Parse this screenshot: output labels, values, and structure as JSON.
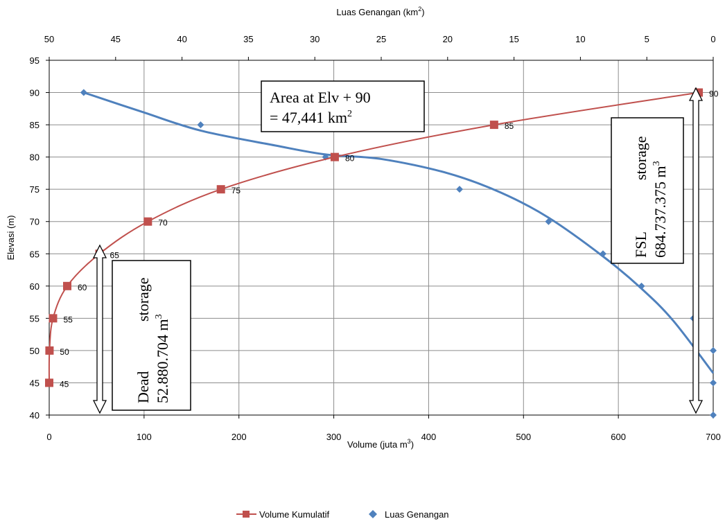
{
  "chart_data": {
    "type": "scatter",
    "x_axis_bottom": {
      "label": "Volume (juta m",
      "label_sup": "3",
      "label_end": ")",
      "range": [
        0,
        700
      ],
      "ticks": [
        0,
        100,
        200,
        300,
        400,
        500,
        600,
        700
      ]
    },
    "x_axis_top": {
      "label": "Luas  Genangan (km",
      "label_sup": "2",
      "label_end": ")",
      "range": [
        50,
        0
      ],
      "reversed": true,
      "ticks": [
        50,
        45,
        40,
        35,
        30,
        25,
        20,
        15,
        10,
        5,
        0
      ]
    },
    "y_axis": {
      "label": "Elevasi (m)",
      "range": [
        40,
        95
      ],
      "ticks": [
        40,
        45,
        50,
        55,
        60,
        65,
        70,
        75,
        80,
        85,
        90,
        95
      ]
    },
    "grid": true,
    "legend_position": "bottom-center",
    "series": [
      {
        "name": "Volume Kumulatif",
        "axis": "bottom",
        "color": "#c0504d",
        "marker": "square",
        "line": true,
        "points": [
          {
            "x": 0,
            "y": 45,
            "label": "45"
          },
          {
            "x": 0.3,
            "y": 50,
            "label": "50"
          },
          {
            "x": 4,
            "y": 55,
            "label": "55"
          },
          {
            "x": 19,
            "y": 60,
            "label": "60"
          },
          {
            "x": 53,
            "y": 65,
            "label": "65"
          },
          {
            "x": 104,
            "y": 70,
            "label": "70"
          },
          {
            "x": 181,
            "y": 75,
            "label": "75"
          },
          {
            "x": 301,
            "y": 80,
            "label": "80"
          },
          {
            "x": 469,
            "y": 85,
            "label": "85"
          },
          {
            "x": 684.7,
            "y": 90,
            "label": "90"
          }
        ]
      },
      {
        "name": "Luas Genangan",
        "axis": "top",
        "color": "#4f81bd",
        "marker": "diamond",
        "trendline": true,
        "points": [
          {
            "x": 0,
            "y": 40
          },
          {
            "x": 0,
            "y": 45
          },
          {
            "x": 0,
            "y": 50
          },
          {
            "x": 1.5,
            "y": 55
          },
          {
            "x": 5.4,
            "y": 60
          },
          {
            "x": 8.3,
            "y": 65
          },
          {
            "x": 12.4,
            "y": 70
          },
          {
            "x": 19.1,
            "y": 75
          },
          {
            "x": 29.2,
            "y": 80
          },
          {
            "x": 38.6,
            "y": 85
          },
          {
            "x": 47.4,
            "y": 90
          }
        ],
        "trend_points": [
          {
            "x": 47.4,
            "y": 90
          },
          {
            "x": 43,
            "y": 87
          },
          {
            "x": 38.6,
            "y": 84.1
          },
          {
            "x": 33,
            "y": 81.8
          },
          {
            "x": 29.2,
            "y": 80.4
          },
          {
            "x": 25,
            "y": 79.7
          },
          {
            "x": 20,
            "y": 77.5
          },
          {
            "x": 16,
            "y": 74.5
          },
          {
            "x": 12.4,
            "y": 70.6
          },
          {
            "x": 8.3,
            "y": 64.6
          },
          {
            "x": 5.4,
            "y": 59.6
          },
          {
            "x": 3,
            "y": 54.6
          },
          {
            "x": 0,
            "y": 46.5
          }
        ]
      }
    ],
    "annotations": {
      "area_box": {
        "line1": "Area at Elv + 90",
        "line2": "= 47,441 km",
        "line2_sup": "2"
      },
      "dead_box": {
        "word1": "Dead",
        "word2": "storage",
        "value": "52.880.704 m",
        "value_sup": "3"
      },
      "fsl_box": {
        "word1": "FSL",
        "word2": "storage",
        "value": "684.737.375 m",
        "value_sup": "3"
      }
    }
  }
}
